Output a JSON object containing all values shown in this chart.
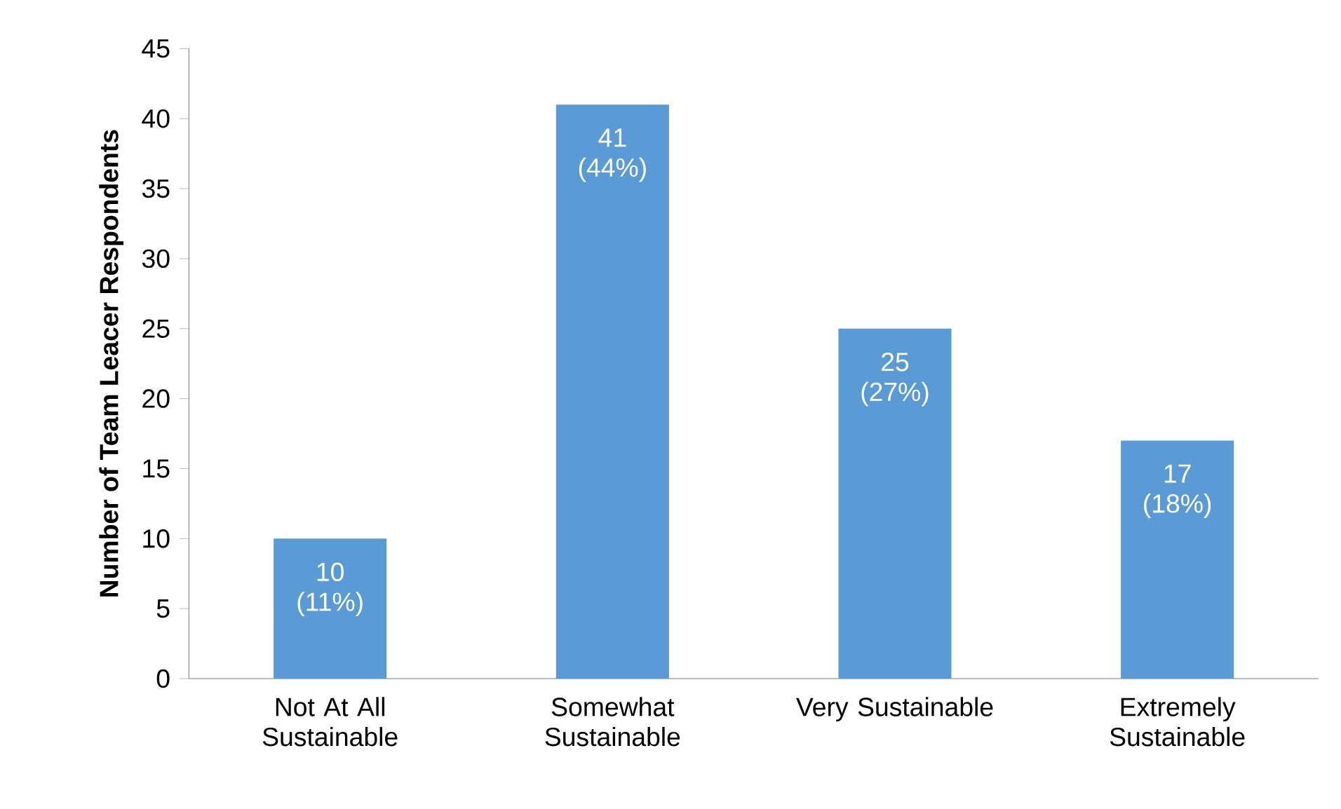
{
  "chart_data": {
    "type": "bar",
    "ylabel": "Number of Team Leacer Respondents",
    "categories": [
      "Not At All Sustainable",
      "Somewhat Sustainable",
      "Very Sustainable",
      "Extremely Sustainable"
    ],
    "values": [
      10,
      41,
      25,
      17
    ],
    "value_labels": [
      "10 (11%)",
      "41 (44%)",
      "25 (27%)",
      "17 (18%)"
    ],
    "color": "#5b9bd5",
    "ylim": [
      0,
      45
    ],
    "yticks": [
      0,
      5,
      10,
      15,
      20,
      25,
      30,
      35,
      40,
      45
    ]
  }
}
